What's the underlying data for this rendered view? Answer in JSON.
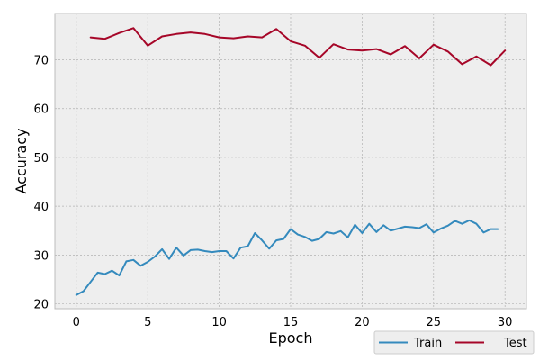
{
  "chart_data": {
    "type": "line",
    "title": "",
    "xlabel": "Epoch",
    "ylabel": "Accuracy",
    "xlim": [
      -1.5,
      31.5
    ],
    "ylim": [
      19,
      79.5
    ],
    "xticks": [
      0,
      5,
      10,
      15,
      20,
      25,
      30
    ],
    "yticks": [
      20,
      30,
      40,
      50,
      60,
      70
    ],
    "grid": true,
    "legend": "bottom-right, outside plot, 2 columns",
    "series": [
      {
        "name": "Train",
        "color": "#348ABD",
        "x": [
          0,
          0.5,
          1,
          1.5,
          2,
          2.5,
          3,
          3.5,
          4,
          4.5,
          5,
          5.5,
          6,
          6.5,
          7,
          7.5,
          8,
          8.5,
          9,
          9.5,
          10,
          10.5,
          11,
          11.5,
          12,
          12.5,
          13,
          13.5,
          14,
          14.5,
          15,
          15.5,
          16,
          16.5,
          17,
          17.5,
          18,
          18.5,
          19,
          19.5,
          20,
          20.5,
          21,
          21.5,
          22,
          22.5,
          23,
          23.5,
          24,
          24.5,
          25,
          25.5,
          26,
          26.5,
          27,
          27.5,
          28,
          28.5,
          29,
          29.5
        ],
        "values": [
          21.8,
          22.6,
          24.5,
          26.4,
          26.1,
          26.8,
          25.8,
          28.7,
          29.0,
          27.8,
          28.6,
          29.7,
          31.2,
          29.2,
          31.5,
          29.9,
          31.0,
          31.1,
          30.8,
          30.6,
          30.8,
          30.8,
          29.3,
          31.5,
          31.8,
          34.5,
          33.0,
          31.3,
          33.0,
          33.3,
          35.3,
          34.2,
          33.7,
          32.9,
          33.3,
          34.7,
          34.4,
          34.9,
          33.6,
          36.2,
          34.5,
          36.4,
          34.7,
          36.1,
          35.0,
          35.4,
          35.8,
          35.7,
          35.5,
          36.3,
          34.6,
          35.4,
          36.0,
          37.0,
          36.4,
          37.1,
          36.4,
          34.6,
          35.3,
          35.3
        ]
      },
      {
        "name": "Test",
        "color": "#A60628",
        "x": [
          1,
          2,
          3,
          4,
          5,
          6,
          7,
          8,
          9,
          10,
          11,
          12,
          13,
          14,
          15,
          16,
          17,
          18,
          19,
          20,
          21,
          22,
          23,
          24,
          25,
          26,
          27,
          28,
          29,
          30
        ],
        "values": [
          74.6,
          74.3,
          75.5,
          76.5,
          72.9,
          74.8,
          75.3,
          75.6,
          75.3,
          74.6,
          74.4,
          74.8,
          74.6,
          76.3,
          73.8,
          72.9,
          70.4,
          73.2,
          72.1,
          71.9,
          72.2,
          71.1,
          72.8,
          70.3,
          73.1,
          71.7,
          69.1,
          70.7,
          68.9,
          71.9
        ]
      }
    ]
  },
  "colors": {
    "figure_background": "#FFFFFF",
    "plot_background": "#EEEEEE",
    "grid": "#B2B2B2",
    "spine": "#BCBCBC",
    "legend_border": "#CCCCCC"
  }
}
